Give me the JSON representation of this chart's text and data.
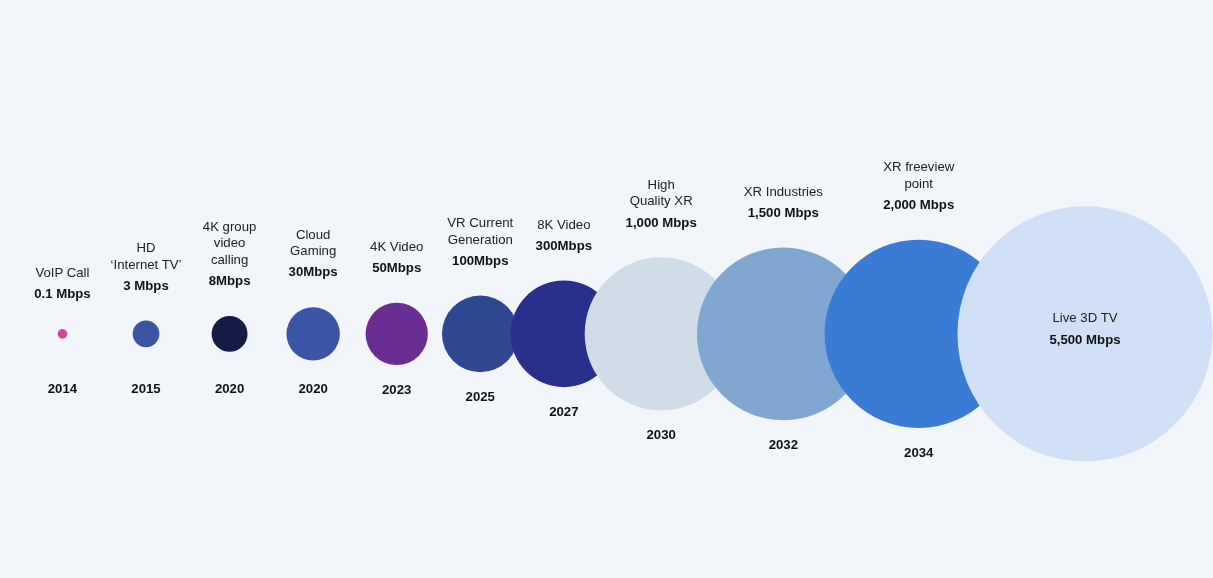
{
  "chart_data": {
    "type": "other",
    "categories": [
      "VoIP Call",
      "HD\n‘Internet TV’",
      "4K group\nvideo\ncalling",
      "Cloud\nGaming",
      "4K Video",
      "VR Current\nGeneration",
      "8K Video",
      "High\nQuality XR",
      "XR Industries",
      "XR freeview\npoint",
      "Live 3D TV"
    ],
    "values": [
      0.1,
      3,
      8,
      30,
      50,
      100,
      300,
      1000,
      1500,
      2000,
      5500
    ],
    "value_labels": [
      "0.1 Mbps",
      "3 Mbps",
      "8Mbps",
      "30Mbps",
      "50Mbps",
      "100Mbps",
      "300Mbps",
      "1,000 Mbps",
      "1,500 Mbps",
      "2,000 Mbps",
      "5,500 Mbps"
    ],
    "colors": [
      "#d6449a",
      "#3a55a5",
      "#141c45",
      "#3a55a5",
      "#6a2d91",
      "#2f4891",
      "#282f8c",
      "#d0dce8",
      "#7fa7d1",
      "#3a7bd5",
      "#cfe0f7"
    ],
    "annotations": [
      {
        "text": "2014",
        "x": "VoIP Call"
      },
      {
        "text": "2015",
        "x": "HD\n‘Internet TV’"
      },
      {
        "text": "2020",
        "x": "4K group\nvideo\ncalling"
      },
      {
        "text": "2020",
        "x": "Cloud\nGaming"
      },
      {
        "text": "2023",
        "x": "4K Video"
      },
      {
        "text": "2025",
        "x": "VR Current\nGeneration"
      },
      {
        "text": "2027",
        "x": "8K Video"
      },
      {
        "text": "2030",
        "x": "High\nQuality XR"
      },
      {
        "text": "2032",
        "x": "XR Industries"
      },
      {
        "text": "2034",
        "x": "XR freeview\npoint"
      }
    ]
  }
}
